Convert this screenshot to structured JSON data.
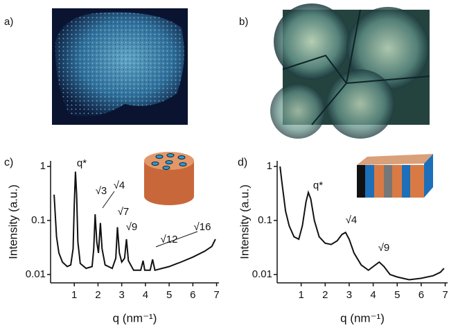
{
  "images": [
    {
      "label": "a)"
    },
    {
      "label": "b)"
    }
  ],
  "chart_data": [
    {
      "type": "line",
      "panel_label": "c)",
      "xlabel": "q (nm⁻¹)",
      "ylabel": "Intensity (a.u.)",
      "log_y": true,
      "xlim": [
        0,
        7.1
      ],
      "xticks": [
        1,
        2,
        3,
        4,
        5,
        6,
        7
      ],
      "ylim": [
        0.007,
        1.27
      ],
      "yticks": [
        1,
        0.1,
        0.01
      ],
      "annotations": [
        "q*",
        "√3",
        "√4",
        "√7",
        "√9",
        "√12",
        "√16"
      ],
      "series": [
        {
          "color": "#111111",
          "x": [
            0.15,
            0.25,
            0.35,
            0.5,
            0.7,
            0.85,
            0.95,
            1.0,
            1.05,
            1.1,
            1.15,
            1.25,
            1.5,
            1.75,
            1.82,
            1.88,
            1.95,
            2.02,
            2.1,
            2.17,
            2.3,
            2.6,
            2.75,
            2.82,
            2.9,
            3.0,
            3.12,
            3.2,
            3.28,
            3.5,
            3.8,
            3.9,
            3.97,
            4.2,
            4.3,
            4.4,
            4.7,
            5.0,
            5.5,
            6.0,
            6.5,
            6.8,
            6.95
          ],
          "values": [
            0.3,
            0.05,
            0.025,
            0.017,
            0.014,
            0.015,
            0.03,
            0.2,
            0.8,
            0.3,
            0.04,
            0.016,
            0.013,
            0.014,
            0.03,
            0.13,
            0.04,
            0.025,
            0.09,
            0.03,
            0.015,
            0.013,
            0.02,
            0.075,
            0.025,
            0.017,
            0.02,
            0.045,
            0.018,
            0.012,
            0.012,
            0.018,
            0.012,
            0.012,
            0.019,
            0.012,
            0.013,
            0.014,
            0.017,
            0.021,
            0.027,
            0.033,
            0.045
          ]
        }
      ]
    },
    {
      "type": "line",
      "panel_label": "d)",
      "xlabel": "q (nm⁻¹)",
      "ylabel": "Intensity (a.u.)",
      "log_y": true,
      "xlim": [
        0,
        7.1
      ],
      "xticks": [
        1,
        2,
        3,
        4,
        5,
        6,
        7
      ],
      "ylim": [
        0.007,
        1.27
      ],
      "yticks": [
        1,
        0.1,
        0.01
      ],
      "annotations": [
        "q*",
        "√4",
        "√9"
      ],
      "series": [
        {
          "color": "#111111",
          "x": [
            0.12,
            0.2,
            0.35,
            0.5,
            0.7,
            0.9,
            1.05,
            1.2,
            1.3,
            1.4,
            1.55,
            1.75,
            2.0,
            2.25,
            2.5,
            2.7,
            2.85,
            3.0,
            3.2,
            3.5,
            3.8,
            4.0,
            4.25,
            4.45,
            4.7,
            5.0,
            5.5,
            6.0,
            6.5,
            6.8,
            6.95
          ],
          "values": [
            1.0,
            0.5,
            0.15,
            0.08,
            0.05,
            0.045,
            0.08,
            0.22,
            0.33,
            0.25,
            0.1,
            0.05,
            0.038,
            0.036,
            0.042,
            0.055,
            0.06,
            0.045,
            0.025,
            0.015,
            0.012,
            0.014,
            0.017,
            0.014,
            0.01,
            0.009,
            0.008,
            0.0085,
            0.0095,
            0.011,
            0.013
          ]
        }
      ]
    }
  ]
}
